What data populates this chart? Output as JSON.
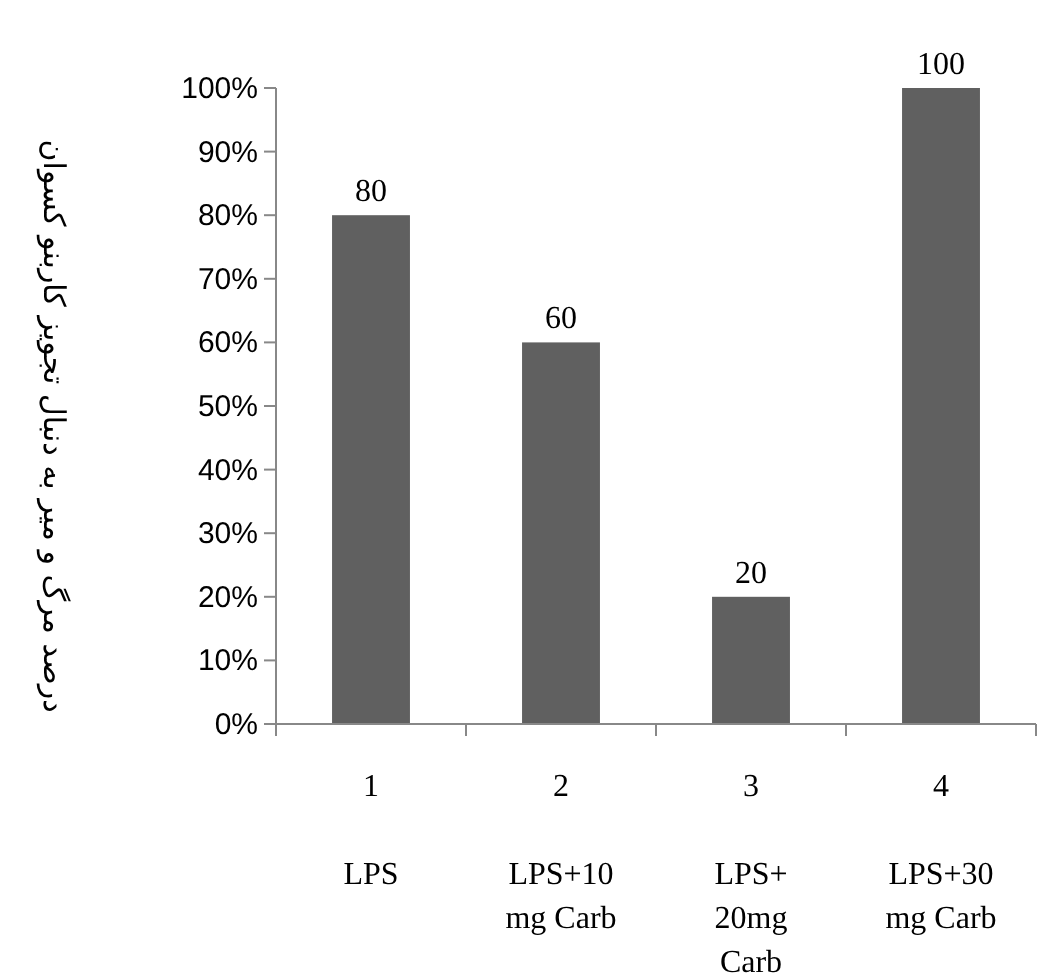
{
  "chart_data": {
    "type": "bar",
    "ylabel": "درصد مرگ و میر به دنبال تجویز کاربنو کسوان",
    "categories": [
      "1",
      "2",
      "3",
      "4"
    ],
    "values": [
      80,
      60,
      20,
      100
    ],
    "color": "#606060",
    "data_labels": true,
    "ylim": [
      0,
      100
    ],
    "yticks": [
      {
        "value": 0,
        "label": "0%"
      },
      {
        "value": 10,
        "label": "10%"
      },
      {
        "value": 20,
        "label": "20%"
      },
      {
        "value": 30,
        "label": "30%"
      },
      {
        "value": 40,
        "label": "40%"
      },
      {
        "value": 50,
        "label": "50%"
      },
      {
        "value": 60,
        "label": "60%"
      },
      {
        "value": 70,
        "label": "70%"
      },
      {
        "value": 80,
        "label": "80%"
      },
      {
        "value": 90,
        "label": "90%"
      },
      {
        "value": 100,
        "label": "100%"
      }
    ],
    "grid": false,
    "annotations": [
      "LPS",
      "LPS+10 mg Carb",
      "LPS+ 20mg Carb",
      "LPS+30mg Carb"
    ]
  }
}
